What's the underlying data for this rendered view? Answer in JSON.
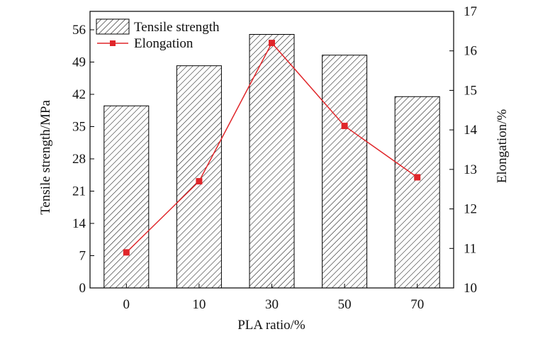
{
  "chart_data": {
    "type": "bar",
    "title": "",
    "xlabel": "PLA ratio/%",
    "ylabel": "Tensile strength/MPa",
    "y2label": "Elongation/%",
    "categories": [
      "0",
      "10",
      "30",
      "50",
      "70"
    ],
    "ylim": [
      0,
      60
    ],
    "yticks": [
      "0",
      "7",
      "14",
      "21",
      "28",
      "35",
      "42",
      "49",
      "56"
    ],
    "y2lim": [
      10,
      17
    ],
    "y2ticks": [
      "10",
      "11",
      "12",
      "13",
      "14",
      "15",
      "16",
      "17"
    ],
    "grid": false,
    "legend_position": "top-left",
    "series": [
      {
        "name": "Tensile strength",
        "type": "bar",
        "axis": "left",
        "pattern": "diagonal-hatch",
        "color": "#000000",
        "values": [
          39.5,
          48.2,
          55.0,
          50.5,
          41.5
        ]
      },
      {
        "name": "Elongation",
        "type": "line",
        "axis": "right",
        "marker": "square",
        "color": "#e0262a",
        "values": [
          10.9,
          12.7,
          16.2,
          14.1,
          12.8
        ]
      }
    ]
  }
}
